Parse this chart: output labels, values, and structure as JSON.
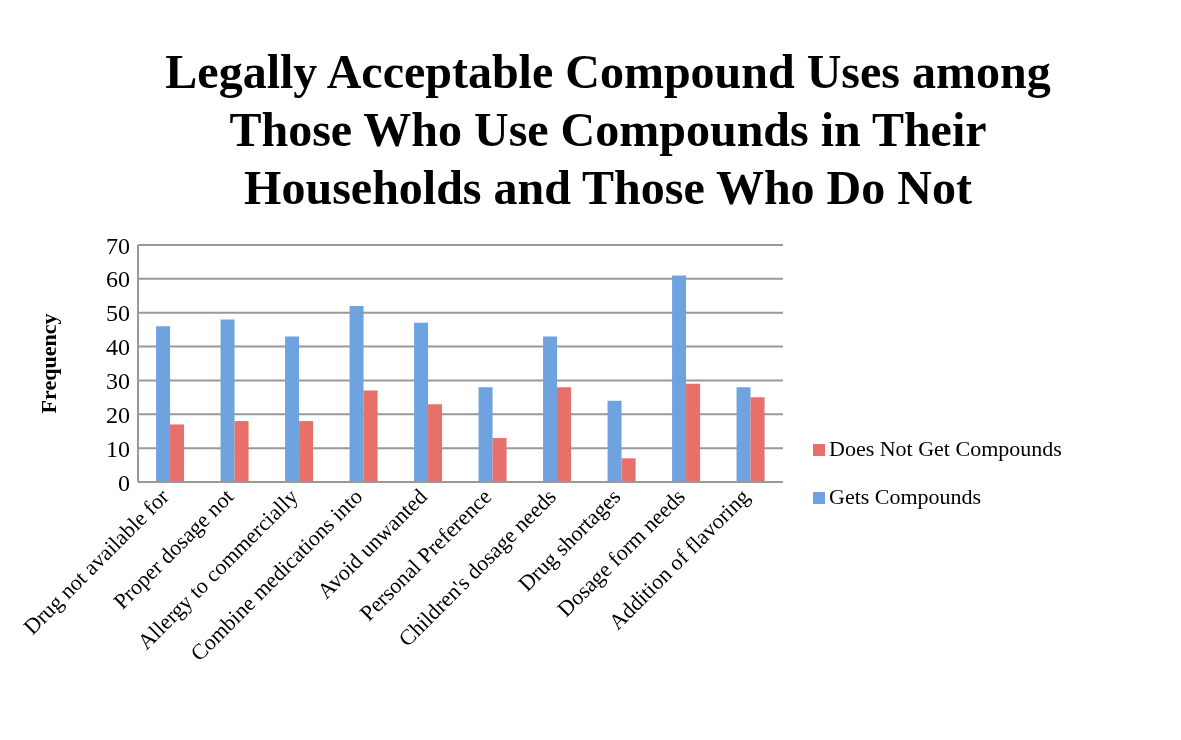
{
  "chart_data": {
    "type": "bar",
    "title": "Legally Acceptable Compound Uses among Those Who Use Compounds in Their Households and Those Who Do Not",
    "ylabel": "Frequency",
    "categories": [
      "Drug not available for",
      "Proper dosage not",
      "Allergy to commercially",
      "Combine medications into",
      "Avoid unwanted",
      "Personal Preference",
      "Children's dosage needs",
      "Drug shortages",
      "Dosage form needs",
      "Addition of flavoring"
    ],
    "series": [
      {
        "name": "Gets Compounds",
        "color": "#6fa3e0",
        "values": [
          46,
          48,
          43,
          52,
          47,
          28,
          43,
          24,
          61,
          28
        ]
      },
      {
        "name": "Does Not Get Compounds",
        "color": "#e8706a",
        "values": [
          17,
          18,
          18,
          27,
          23,
          13,
          28,
          7,
          29,
          25
        ]
      }
    ],
    "ylim": [
      0,
      70
    ],
    "yticks": [
      0,
      10,
      20,
      30,
      40,
      50,
      60,
      70
    ],
    "grid": "y",
    "legend": "right"
  }
}
